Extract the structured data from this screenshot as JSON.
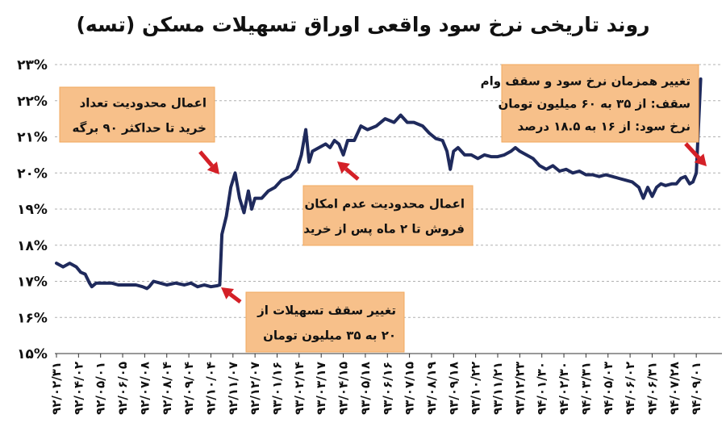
{
  "chart_data": {
    "type": "line",
    "title": "روند تاریخی نرخ سود واقعی اوراق تسهیلات مسکن (تسه)",
    "y_tick_labels": [
      "۱۵%",
      "۱۶%",
      "۱۷%",
      "۱۸%",
      "۱۹%",
      "۲۰%",
      "۲۱%",
      "۲۲%",
      "۲۳%"
    ],
    "ylim": [
      15,
      23
    ],
    "grid": true,
    "x_tick_labels": [
      "۹۲/۰۲/۳۱",
      "۹۲/۰۴/۰۲",
      "۹۲/۰۵/۰۱",
      "۹۲/۰۶/۰۵",
      "۹۲/۰۷/۰۸",
      "۹۲/۰۸/۰۴",
      "۹۲/۰۹/۰۴",
      "۹۲/۱۰/۰۴",
      "۹۲/۱۱/۰۷",
      "۹۲/۱۲/۰۷",
      "۹۳/۰۱/۱۶",
      "۹۳/۰۲/۱۴",
      "۹۳/۰۳/۱۷",
      "۹۳/۰۴/۱۵",
      "۹۳/۰۵/۱۸",
      "۹۳/۰۶/۱۶",
      "۹۳/۰۷/۱۵",
      "۹۳/۰۸/۱۹",
      "۹۳/۰۹/۱۸",
      "۹۳/۱۰/۲۲",
      "۹۳/۱۱/۲۱",
      "۹۳/۱۲/۲۳",
      "۹۴/۰۱/۳۰",
      "۹۴/۰۲/۳۰",
      "۹۴/۰۳/۳۱",
      "۹۴/۰۵/۰۳",
      "۹۴/۰۶/۰۲",
      "۹۴/۰۶/۳۱",
      "۹۴/۰۷/۲۸",
      "۹۴/۰۹/۰۱"
    ],
    "x_ticks_per_label": 1,
    "series": [
      {
        "color": "#1f2a5c",
        "values": [
          {
            "x": 0.0,
            "y": 17.5
          },
          {
            "x": 0.3,
            "y": 17.4
          },
          {
            "x": 0.6,
            "y": 17.5
          },
          {
            "x": 0.9,
            "y": 17.4
          },
          {
            "x": 1.1,
            "y": 17.25
          },
          {
            "x": 1.3,
            "y": 17.2
          },
          {
            "x": 1.5,
            "y": 16.95
          },
          {
            "x": 1.6,
            "y": 16.85
          },
          {
            "x": 1.8,
            "y": 16.95
          },
          {
            "x": 2.2,
            "y": 16.95
          },
          {
            "x": 2.5,
            "y": 16.95
          },
          {
            "x": 2.8,
            "y": 16.9
          },
          {
            "x": 3.2,
            "y": 16.9
          },
          {
            "x": 3.6,
            "y": 16.9
          },
          {
            "x": 3.9,
            "y": 16.85
          },
          {
            "x": 4.1,
            "y": 16.8
          },
          {
            "x": 4.2,
            "y": 16.85
          },
          {
            "x": 4.4,
            "y": 17.0
          },
          {
            "x": 4.7,
            "y": 16.95
          },
          {
            "x": 5.0,
            "y": 16.9
          },
          {
            "x": 5.4,
            "y": 16.95
          },
          {
            "x": 5.8,
            "y": 16.9
          },
          {
            "x": 6.1,
            "y": 16.95
          },
          {
            "x": 6.4,
            "y": 16.85
          },
          {
            "x": 6.7,
            "y": 16.9
          },
          {
            "x": 7.0,
            "y": 16.85
          },
          {
            "x": 7.3,
            "y": 16.88
          },
          {
            "x": 7.4,
            "y": 16.9
          },
          {
            "x": 7.5,
            "y": 18.3
          },
          {
            "x": 7.7,
            "y": 18.8
          },
          {
            "x": 7.9,
            "y": 19.6
          },
          {
            "x": 8.1,
            "y": 20.0
          },
          {
            "x": 8.3,
            "y": 19.3
          },
          {
            "x": 8.5,
            "y": 18.9
          },
          {
            "x": 8.7,
            "y": 19.5
          },
          {
            "x": 8.85,
            "y": 19.0
          },
          {
            "x": 9.0,
            "y": 19.3
          },
          {
            "x": 9.3,
            "y": 19.3
          },
          {
            "x": 9.6,
            "y": 19.5
          },
          {
            "x": 9.9,
            "y": 19.6
          },
          {
            "x": 10.2,
            "y": 19.8
          },
          {
            "x": 10.6,
            "y": 19.9
          },
          {
            "x": 10.9,
            "y": 20.1
          },
          {
            "x": 11.1,
            "y": 20.5
          },
          {
            "x": 11.3,
            "y": 21.2
          },
          {
            "x": 11.45,
            "y": 20.3
          },
          {
            "x": 11.6,
            "y": 20.6
          },
          {
            "x": 11.9,
            "y": 20.7
          },
          {
            "x": 12.2,
            "y": 20.8
          },
          {
            "x": 12.4,
            "y": 20.7
          },
          {
            "x": 12.6,
            "y": 20.9
          },
          {
            "x": 12.8,
            "y": 20.8
          },
          {
            "x": 13.0,
            "y": 20.5
          },
          {
            "x": 13.2,
            "y": 20.9
          },
          {
            "x": 13.5,
            "y": 20.9
          },
          {
            "x": 13.8,
            "y": 21.3
          },
          {
            "x": 14.1,
            "y": 21.2
          },
          {
            "x": 14.5,
            "y": 21.3
          },
          {
            "x": 14.9,
            "y": 21.5
          },
          {
            "x": 15.3,
            "y": 21.4
          },
          {
            "x": 15.6,
            "y": 21.6
          },
          {
            "x": 15.9,
            "y": 21.4
          },
          {
            "x": 16.2,
            "y": 21.4
          },
          {
            "x": 16.6,
            "y": 21.3
          },
          {
            "x": 16.9,
            "y": 21.1
          },
          {
            "x": 17.2,
            "y": 20.95
          },
          {
            "x": 17.5,
            "y": 20.9
          },
          {
            "x": 17.7,
            "y": 20.6
          },
          {
            "x": 17.85,
            "y": 20.1
          },
          {
            "x": 18.0,
            "y": 20.6
          },
          {
            "x": 18.2,
            "y": 20.7
          },
          {
            "x": 18.5,
            "y": 20.5
          },
          {
            "x": 18.8,
            "y": 20.5
          },
          {
            "x": 19.1,
            "y": 20.4
          },
          {
            "x": 19.4,
            "y": 20.5
          },
          {
            "x": 19.7,
            "y": 20.45
          },
          {
            "x": 20.0,
            "y": 20.45
          },
          {
            "x": 20.3,
            "y": 20.5
          },
          {
            "x": 20.6,
            "y": 20.6
          },
          {
            "x": 20.8,
            "y": 20.7
          },
          {
            "x": 21.0,
            "y": 20.6
          },
          {
            "x": 21.3,
            "y": 20.5
          },
          {
            "x": 21.6,
            "y": 20.4
          },
          {
            "x": 21.9,
            "y": 20.2
          },
          {
            "x": 22.2,
            "y": 20.1
          },
          {
            "x": 22.5,
            "y": 20.2
          },
          {
            "x": 22.8,
            "y": 20.05
          },
          {
            "x": 23.1,
            "y": 20.1
          },
          {
            "x": 23.4,
            "y": 20.0
          },
          {
            "x": 23.7,
            "y": 20.05
          },
          {
            "x": 24.0,
            "y": 19.95
          },
          {
            "x": 24.3,
            "y": 19.95
          },
          {
            "x": 24.6,
            "y": 19.9
          },
          {
            "x": 24.9,
            "y": 19.95
          },
          {
            "x": 25.2,
            "y": 19.9
          },
          {
            "x": 25.5,
            "y": 19.85
          },
          {
            "x": 25.8,
            "y": 19.8
          },
          {
            "x": 26.1,
            "y": 19.75
          },
          {
            "x": 26.4,
            "y": 19.6
          },
          {
            "x": 26.6,
            "y": 19.3
          },
          {
            "x": 26.8,
            "y": 19.6
          },
          {
            "x": 27.0,
            "y": 19.35
          },
          {
            "x": 27.2,
            "y": 19.6
          },
          {
            "x": 27.4,
            "y": 19.7
          },
          {
            "x": 27.6,
            "y": 19.65
          },
          {
            "x": 27.9,
            "y": 19.7
          },
          {
            "x": 28.1,
            "y": 19.7
          },
          {
            "x": 28.3,
            "y": 19.85
          },
          {
            "x": 28.5,
            "y": 19.9
          },
          {
            "x": 28.7,
            "y": 19.7
          },
          {
            "x": 28.85,
            "y": 19.75
          },
          {
            "x": 29.0,
            "y": 20.0
          },
          {
            "x": 29.2,
            "y": 22.6
          }
        ]
      }
    ],
    "annotations": [
      {
        "lines": [
          "اعمال محدودیت تعداد",
          "خرید تا حداکثر ۹۰ برگه"
        ]
      },
      {
        "lines": [
          "اعمال محدودیت عدم امکان",
          "فروش تا ۲ ماه پس از خرید"
        ]
      },
      {
        "lines": [
          "تغییر سقف تسهیلات از",
          "۲۰ به ۳۵ میلیون تومان"
        ]
      },
      {
        "lines": [
          "تغییر همزمان نرخ سود و سقف وام",
          "سقف: از ۳۵ به ۶۰ میلیون تومان",
          "نرخ سود: از ۱۶ به ۱۸.۵ درصد"
        ]
      }
    ],
    "colors": {
      "line": "#1f2a5c",
      "annotation_box": "#f7c08a",
      "arrow": "#d42027",
      "grid": "#b0b0b0"
    }
  }
}
